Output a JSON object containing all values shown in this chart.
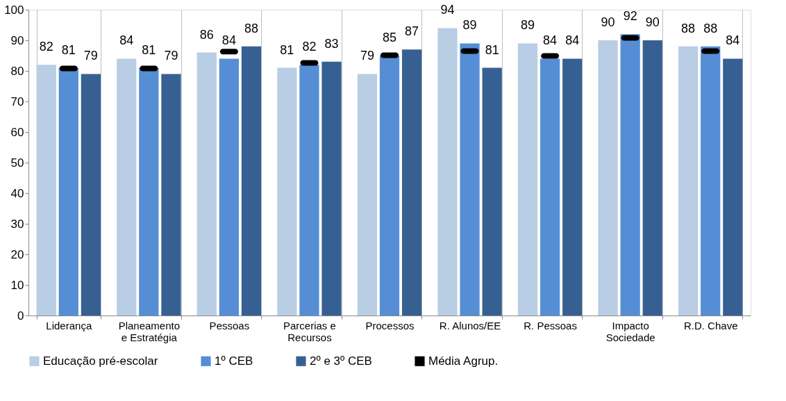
{
  "chart_data": {
    "type": "bar",
    "categories": [
      "Liderança",
      "Planeamento e Estratégia",
      "Pessoas",
      "Parcerias e Recursos",
      "Processos",
      "R. Alunos/EE",
      "R. Pessoas",
      "Impacto Sociedade",
      "R.D. Chave"
    ],
    "series": [
      {
        "name": "Educação pré-escolar",
        "color": "#b9cde5",
        "values": [
          82,
          84,
          86,
          81,
          79,
          94,
          89,
          90,
          88
        ],
        "value_labels": [
          "82",
          "84",
          "86",
          "81",
          "79",
          "94",
          "89",
          "90",
          "88"
        ]
      },
      {
        "name": "1º CEB",
        "color": "#558ed5",
        "values": [
          81,
          81,
          84,
          82,
          85,
          89,
          84,
          92,
          88
        ],
        "value_labels": [
          "81",
          "81",
          "84",
          "82",
          "85",
          "89",
          "84",
          "92",
          "88"
        ]
      },
      {
        "name": "2º e 3º CEB",
        "color": "#376092",
        "values": [
          79,
          79,
          88,
          83,
          87,
          81,
          84,
          90,
          84
        ],
        "value_labels": [
          "79",
          "79",
          "88",
          "83",
          "87",
          "81",
          "84",
          "90",
          "84"
        ]
      },
      {
        "name": "Média Agrup.",
        "type": "scatter",
        "color": "#000000",
        "values": [
          80.8,
          80.8,
          86.3,
          82.6,
          85.1,
          86.5,
          84.9,
          90.8,
          86.5
        ]
      }
    ],
    "ylim": [
      0,
      100
    ],
    "yticks": [
      0,
      10,
      20,
      30,
      40,
      50,
      60,
      70,
      80,
      90,
      100
    ],
    "grid": "x",
    "legend": "bottom"
  }
}
